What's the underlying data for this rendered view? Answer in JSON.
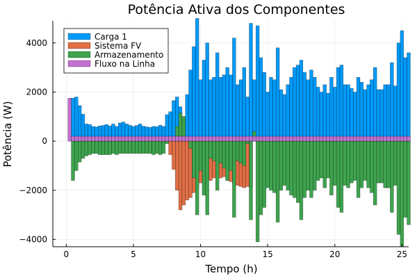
{
  "chart_data": {
    "type": "bar",
    "title": "Potência Ativa dos Componentes",
    "xlabel": "Tempo (h)",
    "ylabel": "Potência (W)",
    "xlim": [
      -1,
      25.5
    ],
    "ylim": [
      -4300,
      4900
    ],
    "xticks": [
      0,
      5,
      10,
      15,
      20,
      25
    ],
    "yticks": [
      -4000,
      -2000,
      0,
      2000,
      4000
    ],
    "grid": true,
    "legend_position": "top-left",
    "bar_step_hours": 0.25,
    "x_start": 0.25,
    "series": [
      {
        "name": "Carga 1",
        "color": "#009AFA",
        "values": [
          0,
          1750,
          1800,
          1450,
          1100,
          700,
          680,
          600,
          580,
          620,
          640,
          680,
          620,
          700,
          600,
          740,
          780,
          700,
          650,
          600,
          640,
          700,
          610,
          580,
          560,
          600,
          590,
          650,
          600,
          1080,
          1200,
          1650,
          1800,
          1400,
          1000,
          1900,
          2900,
          3850,
          5000,
          2500,
          3300,
          4000,
          2500,
          2600,
          3600,
          2600,
          2700,
          3000,
          2700,
          4200,
          2300,
          2500,
          3000,
          1800,
          4800,
          2500,
          4700,
          3400,
          2800,
          2000,
          2600,
          2500,
          3800,
          2100,
          1900,
          2300,
          2600,
          3000,
          3100,
          3300,
          2800,
          2500,
          2900,
          2600,
          2200,
          2000,
          2300,
          1950,
          2600,
          2200,
          3000,
          3100,
          2300,
          2300,
          2150,
          2000,
          2600,
          2400,
          2100,
          2300,
          2500,
          3000,
          2100,
          2100,
          2300,
          2300,
          3200,
          2250,
          4000,
          4500,
          3400,
          3600
        ]
      },
      {
        "name": "Sistema FV",
        "color": "#E26F46",
        "values": [
          0,
          0,
          0,
          0,
          0,
          0,
          0,
          0,
          0,
          0,
          0,
          0,
          0,
          0,
          0,
          0,
          0,
          0,
          0,
          0,
          0,
          0,
          0,
          0,
          0,
          0,
          0,
          0,
          0,
          0,
          -550,
          -1150,
          -2000,
          -2800,
          -2600,
          -2400,
          -2300,
          -2100,
          -1900,
          -1700,
          -1600,
          -1550,
          -1600,
          -1500,
          -1450,
          -1500,
          -1450,
          -1600,
          -1650,
          -1750,
          -1800,
          -1850,
          -1900,
          -1850,
          -1900,
          0,
          0,
          0,
          0,
          0,
          0,
          0,
          0,
          0,
          0,
          0,
          0,
          0,
          0,
          0,
          0,
          0,
          0,
          0,
          0,
          0,
          0,
          0,
          0,
          0,
          0,
          0,
          0,
          0,
          0,
          0,
          0,
          0,
          0,
          0,
          0,
          0,
          0,
          0,
          0,
          0,
          0,
          0,
          0,
          0,
          0,
          0
        ]
      },
      {
        "name": "Armazenamento",
        "color": "#3EA44E",
        "values": [
          0,
          -1600,
          -1200,
          -850,
          -700,
          -600,
          -550,
          -500,
          -500,
          -550,
          -550,
          -550,
          -550,
          -500,
          -550,
          -500,
          -500,
          -500,
          -500,
          -500,
          -500,
          -500,
          -500,
          -500,
          -500,
          -550,
          -500,
          -550,
          -500,
          -100,
          100,
          200,
          600,
          1150,
          1000,
          0,
          -300,
          -1500,
          -3000,
          -1200,
          -2200,
          -3000,
          -700,
          -800,
          -2000,
          -900,
          -1100,
          -1600,
          -1200,
          -3100,
          -800,
          -900,
          -1000,
          -100,
          -3200,
          400,
          -4100,
          -3000,
          -2700,
          -1900,
          -2000,
          -2100,
          -3300,
          -2000,
          -1800,
          -2000,
          -2200,
          -2300,
          -2500,
          -3200,
          -2300,
          -2000,
          -2300,
          -2000,
          -1600,
          -1500,
          -1900,
          -1500,
          -2200,
          -1800,
          -2700,
          -2900,
          -1800,
          -1900,
          -1700,
          -1600,
          -2300,
          -1900,
          -1600,
          -1900,
          -2100,
          -2600,
          -1700,
          -1700,
          -1900,
          -1900,
          -2900,
          -1800,
          -3800,
          -4300,
          -3100,
          -3400
        ]
      },
      {
        "name": "Fluxo na Linha",
        "color": "#C271D2",
        "values": [
          1750,
          200,
          200,
          200,
          200,
          200,
          200,
          200,
          200,
          200,
          200,
          200,
          200,
          200,
          200,
          200,
          200,
          200,
          200,
          200,
          200,
          200,
          200,
          200,
          200,
          200,
          200,
          200,
          200,
          200,
          200,
          200,
          200,
          200,
          200,
          200,
          200,
          200,
          200,
          200,
          200,
          200,
          200,
          200,
          200,
          200,
          200,
          200,
          200,
          200,
          200,
          200,
          200,
          200,
          200,
          200,
          200,
          200,
          200,
          200,
          200,
          200,
          200,
          200,
          200,
          200,
          200,
          200,
          200,
          200,
          200,
          200,
          200,
          200,
          200,
          200,
          200,
          200,
          200,
          200,
          200,
          200,
          200,
          200,
          200,
          200,
          200,
          200,
          200,
          200,
          200,
          200,
          200,
          200,
          200,
          200,
          200,
          200,
          200,
          200,
          200,
          200
        ]
      }
    ]
  }
}
